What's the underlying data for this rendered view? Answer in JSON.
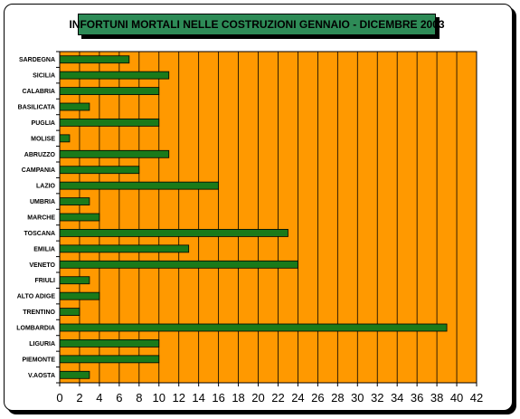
{
  "chart_data": {
    "type": "bar",
    "orientation": "horizontal",
    "title": "INFORTUNI MORTALI NELLE COSTRUZIONI  GENNAIO - DICEMBRE 2003",
    "xlabel": "",
    "ylabel": "",
    "xlim": [
      0,
      42
    ],
    "xticks": [
      "0",
      "2",
      "4",
      "6",
      "8",
      "10",
      "12",
      "14",
      "16",
      "18",
      "20",
      "22",
      "24",
      "26",
      "28",
      "30",
      "32",
      "34",
      "36",
      "38",
      "40",
      "42"
    ],
    "grid": true,
    "legend": "none",
    "categories": [
      "SARDEGNA",
      "SICILIA",
      "CALABRIA",
      "BASILICATA",
      "PUGLIA",
      "MOLISE",
      "ABRUZZO",
      "CAMPANIA",
      "LAZIO",
      "UMBRIA",
      "MARCHE",
      "TOSCANA",
      "EMILIA",
      "VENETO",
      "FRIULI",
      "ALTO ADIGE",
      "TRENTINO",
      "LOMBARDIA",
      "LIGURIA",
      "PIEMONTE",
      "V.AOSTA"
    ],
    "values": [
      7,
      11,
      10,
      3,
      10,
      1,
      11,
      8,
      16,
      3,
      4,
      23,
      13,
      24,
      3,
      4,
      2,
      39,
      10,
      10,
      3
    ],
    "colors": {
      "plot_bg": "#ff9900",
      "bar": "#1a7a1a",
      "title_bg": "#2e8b57",
      "grid": "#000000"
    }
  }
}
